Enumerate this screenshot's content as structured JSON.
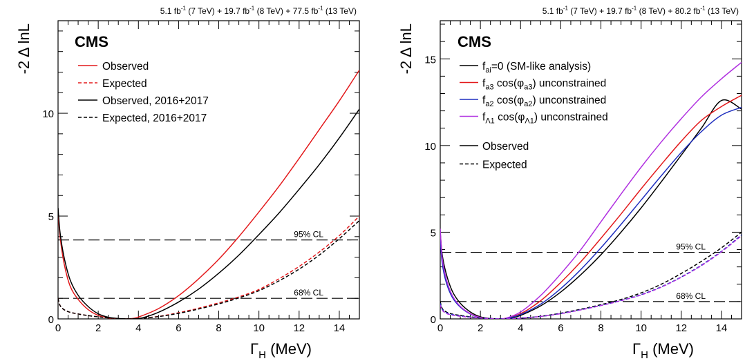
{
  "chart_data": [
    {
      "type": "line",
      "lumi_label": "5.1 fb⁻¹ (7 TeV) + 19.7 fb⁻¹ (8 TeV) + 77.5 fb⁻¹ (13 TeV)",
      "experiment_label": "CMS",
      "xlabel": "Γ_H (MeV)",
      "ylabel": "-2 Δ lnL",
      "xlim": [
        0,
        15
      ],
      "ylim": [
        0,
        14.5
      ],
      "xticks": [
        0,
        2,
        4,
        6,
        8,
        10,
        12,
        14
      ],
      "yticks": [
        0,
        5,
        10
      ],
      "grid": false,
      "legend_position": "top-left",
      "reference_lines": [
        {
          "y": 3.84,
          "label": "95% CL"
        },
        {
          "y": 1.0,
          "label": "68% CL"
        }
      ],
      "series": [
        {
          "name": "Observed",
          "color": "#e31a1c",
          "dash": "solid",
          "x": [
            0,
            0.1,
            0.3,
            0.6,
            1.0,
            1.5,
            2.0,
            2.5,
            3.0,
            3.3,
            3.6,
            4.0,
            5.0,
            6.0,
            7.0,
            8.0,
            9.0,
            10.0,
            11.0,
            12.0,
            13.0,
            14.0,
            15.0
          ],
          "y": [
            5.2,
            4.0,
            2.7,
            1.6,
            0.95,
            0.45,
            0.17,
            0.05,
            0.005,
            0.0,
            0.01,
            0.09,
            0.5,
            1.13,
            1.95,
            2.9,
            4.0,
            5.2,
            6.45,
            7.8,
            9.2,
            10.6,
            12.1
          ]
        },
        {
          "name": "Expected",
          "color": "#e31a1c",
          "dash": "dashed",
          "x": [
            0,
            0.1,
            0.3,
            0.6,
            1.0,
            1.5,
            2.0,
            2.5,
            3.0,
            3.5,
            4.0,
            5.0,
            6.0,
            7.0,
            8.0,
            9.0,
            10.0,
            11.0,
            12.0,
            13.0,
            14.0,
            15.0
          ],
          "y": [
            1.0,
            0.65,
            0.45,
            0.32,
            0.24,
            0.16,
            0.1,
            0.05,
            0.015,
            0.0,
            0.02,
            0.12,
            0.3,
            0.52,
            0.78,
            1.07,
            1.43,
            1.95,
            2.55,
            3.25,
            4.05,
            5.0
          ]
        },
        {
          "name": "Observed, 2016+2017",
          "color": "#000000",
          "dash": "solid",
          "x": [
            0,
            0.1,
            0.3,
            0.6,
            1.0,
            1.5,
            2.0,
            2.5,
            3.0,
            3.5,
            3.8,
            4.2,
            5.0,
            6.0,
            7.0,
            8.0,
            9.0,
            10.0,
            11.0,
            12.0,
            13.0,
            14.0,
            15.0
          ],
          "y": [
            5.4,
            4.2,
            3.0,
            1.9,
            1.15,
            0.6,
            0.25,
            0.08,
            0.02,
            0.0,
            0.005,
            0.05,
            0.32,
            0.82,
            1.45,
            2.22,
            3.1,
            4.1,
            5.15,
            6.3,
            7.5,
            8.8,
            10.2
          ]
        },
        {
          "name": "Expected, 2016+2017",
          "color": "#000000",
          "dash": "dashed",
          "x": [
            0,
            0.1,
            0.3,
            0.6,
            1.0,
            1.5,
            2.0,
            2.5,
            3.0,
            3.5,
            4.0,
            5.0,
            6.0,
            7.0,
            8.0,
            9.0,
            10.0,
            11.0,
            12.0,
            13.0,
            14.0,
            15.0
          ],
          "y": [
            1.0,
            0.65,
            0.45,
            0.32,
            0.24,
            0.16,
            0.1,
            0.05,
            0.015,
            0.0,
            0.02,
            0.11,
            0.27,
            0.48,
            0.73,
            1.02,
            1.37,
            1.85,
            2.42,
            3.1,
            3.9,
            4.78
          ]
        }
      ]
    },
    {
      "type": "line",
      "lumi_label": "5.1 fb⁻¹ (7 TeV) + 19.7 fb⁻¹ (8 TeV) + 80.2 fb⁻¹ (13 TeV)",
      "experiment_label": "CMS",
      "xlabel": "Γ_H (MeV)",
      "ylabel": "-2 Δ lnL",
      "xlim": [
        0,
        15
      ],
      "ylim": [
        0,
        17.2
      ],
      "xticks": [
        0,
        2,
        4,
        6,
        8,
        10,
        12,
        14
      ],
      "yticks": [
        0,
        5,
        10,
        15
      ],
      "grid": false,
      "legend_position": "top-left",
      "reference_lines": [
        {
          "y": 3.84,
          "label": "95% CL"
        },
        {
          "y": 1.0,
          "label": "68% CL"
        }
      ],
      "legend_colors": [
        {
          "label": "f_ai=0 (SM-like analysis)",
          "color": "#000000"
        },
        {
          "label": "f_a3 cos(φ_a3) unconstrained",
          "color": "#e31a1c"
        },
        {
          "label": "f_a2 cos(φ_a2) unconstrained",
          "color": "#1f2fbf"
        },
        {
          "label": "f_Λ1 cos(φ_Λ1) unconstrained",
          "color": "#b030e0"
        }
      ],
      "legend_styles": [
        {
          "label": "Observed",
          "dash": "solid"
        },
        {
          "label": "Expected",
          "dash": "dashed"
        }
      ],
      "series": [
        {
          "color": "#000000",
          "dash": "solid",
          "x": [
            0,
            0.1,
            0.3,
            0.6,
            1.0,
            1.5,
            2.0,
            2.5,
            3.0,
            3.5,
            4.0,
            5.0,
            6.0,
            7.0,
            8.0,
            9.0,
            10.0,
            11.0,
            12.0,
            13.0,
            14.0,
            15.0
          ],
          "y": [
            5.0,
            3.7,
            2.6,
            1.6,
            0.9,
            0.4,
            0.12,
            0.02,
            0.0,
            0.04,
            0.2,
            0.75,
            1.55,
            2.55,
            3.7,
            5.0,
            6.4,
            7.9,
            9.45,
            11.0,
            12.6,
            12.1
          ]
        },
        {
          "color": "#e31a1c",
          "dash": "solid",
          "x": [
            0,
            0.1,
            0.3,
            0.6,
            1.0,
            1.5,
            2.0,
            2.5,
            2.8,
            3.2,
            4.0,
            5.0,
            6.0,
            7.0,
            8.0,
            9.0,
            10.0,
            11.0,
            12.0,
            13.0,
            14.0,
            15.0
          ],
          "y": [
            4.8,
            3.3,
            2.2,
            1.3,
            0.7,
            0.3,
            0.08,
            0.01,
            0.0,
            0.02,
            0.3,
            1.05,
            2.1,
            3.3,
            4.65,
            6.05,
            7.5,
            8.9,
            10.25,
            11.45,
            12.25,
            12.9
          ]
        },
        {
          "color": "#1f2fbf",
          "dash": "solid",
          "x": [
            0,
            0.1,
            0.3,
            0.6,
            1.0,
            1.5,
            2.0,
            2.5,
            2.9,
            3.3,
            4.0,
            5.0,
            6.0,
            7.0,
            8.0,
            9.0,
            10.0,
            11.0,
            12.0,
            13.0,
            14.0,
            15.0
          ],
          "y": [
            4.6,
            3.2,
            2.1,
            1.25,
            0.68,
            0.28,
            0.07,
            0.01,
            0.0,
            0.02,
            0.25,
            0.85,
            1.75,
            2.85,
            4.1,
            5.45,
            6.85,
            8.25,
            9.6,
            10.8,
            11.75,
            12.2
          ]
        },
        {
          "color": "#b030e0",
          "dash": "solid",
          "x": [
            0,
            0.1,
            0.3,
            0.6,
            1.0,
            1.5,
            2.0,
            2.5,
            2.8,
            3.2,
            4.0,
            5.0,
            6.0,
            7.0,
            8.0,
            9.0,
            10.0,
            11.0,
            12.0,
            13.0,
            14.0,
            15.0
          ],
          "y": [
            5.2,
            3.5,
            2.3,
            1.35,
            0.72,
            0.3,
            0.08,
            0.01,
            0.0,
            0.02,
            0.4,
            1.35,
            2.6,
            4.0,
            5.6,
            7.2,
            8.75,
            10.2,
            11.55,
            12.8,
            13.85,
            14.8
          ]
        },
        {
          "color": "#000000",
          "dash": "dashed",
          "x": [
            0,
            0.1,
            0.3,
            0.6,
            1.0,
            1.5,
            2.0,
            2.5,
            3.0,
            3.5,
            4.0,
            5.0,
            6.0,
            7.0,
            8.0,
            9.0,
            10.0,
            11.0,
            12.0,
            13.0,
            14.0,
            15.0
          ],
          "y": [
            1.0,
            0.6,
            0.4,
            0.28,
            0.2,
            0.12,
            0.06,
            0.02,
            0.0,
            0.01,
            0.04,
            0.15,
            0.33,
            0.56,
            0.82,
            1.12,
            1.5,
            2.0,
            2.62,
            3.32,
            4.1,
            5.0
          ]
        },
        {
          "color": "#1f2fbf",
          "dash": "dashed",
          "x": [
            0,
            0.1,
            0.3,
            0.6,
            1.0,
            1.5,
            2.0,
            2.5,
            3.0,
            3.5,
            4.0,
            5.0,
            6.0,
            7.0,
            8.0,
            9.0,
            10.0,
            11.0,
            12.0,
            13.0,
            14.0,
            15.0
          ],
          "y": [
            0.9,
            0.55,
            0.36,
            0.25,
            0.17,
            0.1,
            0.05,
            0.02,
            0.0,
            0.01,
            0.04,
            0.14,
            0.31,
            0.53,
            0.78,
            1.06,
            1.4,
            1.85,
            2.42,
            3.1,
            3.9,
            4.85
          ]
        },
        {
          "color": "#b030e0",
          "dash": "dashed",
          "x": [
            0,
            0.1,
            0.3,
            0.6,
            1.0,
            1.5,
            2.0,
            2.5,
            3.0,
            3.5,
            4.0,
            5.0,
            6.0,
            7.0,
            8.0,
            9.0,
            10.0,
            11.0,
            12.0,
            13.0,
            14.0,
            15.0
          ],
          "y": [
            0.8,
            0.5,
            0.32,
            0.22,
            0.15,
            0.09,
            0.05,
            0.02,
            0.0,
            0.01,
            0.04,
            0.14,
            0.3,
            0.52,
            0.77,
            1.05,
            1.38,
            1.83,
            2.4,
            3.07,
            3.87,
            4.8
          ]
        }
      ]
    }
  ]
}
